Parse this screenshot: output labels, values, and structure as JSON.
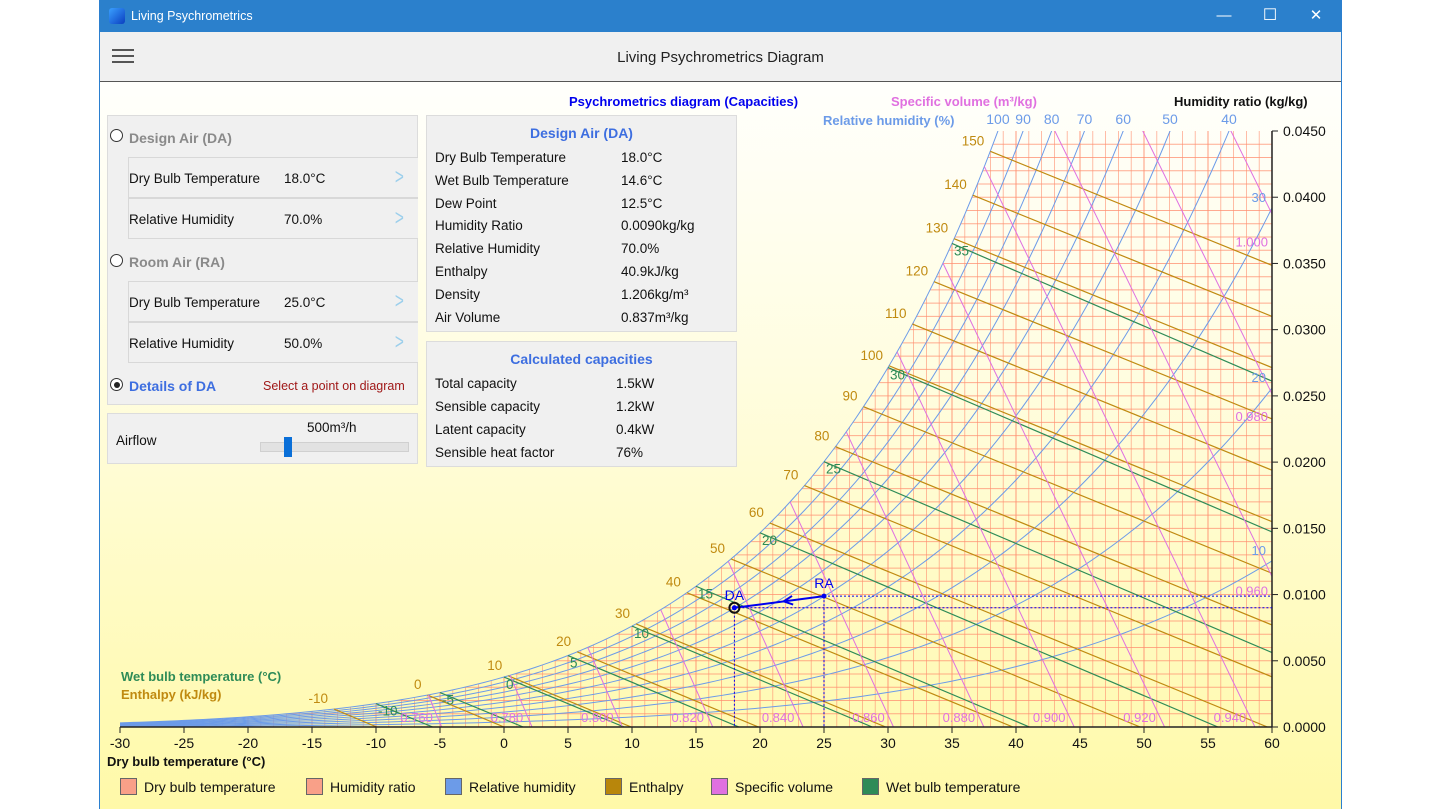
{
  "window": {
    "title": "Living Psychrometrics",
    "header_title": "Living Psychrometrics Diagram",
    "minimize": "—",
    "maximize": "☐",
    "close": "✕"
  },
  "inputs": {
    "design_air": {
      "label": "Design Air (DA)",
      "selected": false,
      "rows": [
        {
          "label": "Dry Bulb Temperature",
          "value": "18.0°C"
        },
        {
          "label": "Relative Humidity",
          "value": "70.0%"
        }
      ]
    },
    "room_air": {
      "label": "Room Air (RA)",
      "selected": false,
      "rows": [
        {
          "label": "Dry Bulb Temperature",
          "value": "25.0°C"
        },
        {
          "label": "Relative Humidity",
          "value": "50.0%"
        }
      ]
    },
    "details": {
      "label": "Details of DA",
      "selected": true,
      "hint": "Select a point on diagram"
    },
    "chevron": ">"
  },
  "airflow": {
    "label": "Airflow",
    "value": "500m³/h",
    "fraction": 0.19
  },
  "design_details": {
    "title": "Design Air (DA)",
    "rows": [
      {
        "label": "Dry Bulb Temperature",
        "value": "18.0°C"
      },
      {
        "label": "Wet Bulb Temperature",
        "value": "14.6°C"
      },
      {
        "label": "Dew Point",
        "value": "12.5°C"
      },
      {
        "label": "Humidity Ratio",
        "value": "0.0090kg/kg"
      },
      {
        "label": "Relative Humidity",
        "value": "70.0%"
      },
      {
        "label": "Enthalpy",
        "value": "40.9kJ/kg"
      },
      {
        "label": "Density",
        "value": "1.206kg/m³"
      },
      {
        "label": "Air Volume",
        "value": "0.837m³/kg"
      }
    ]
  },
  "capacities": {
    "title": "Calculated capacities",
    "rows": [
      {
        "label": "Total capacity",
        "value": "1.5kW"
      },
      {
        "label": "Sensible capacity",
        "value": "1.2kW"
      },
      {
        "label": "Latent capacity",
        "value": "0.4kW"
      },
      {
        "label": "Sensible heat factor",
        "value": "76%"
      }
    ]
  },
  "chart_data": {
    "type": "line",
    "title": "Psychrometrics diagram (Capacities)",
    "xlabel": "Dry bulb temperature (°C)",
    "ylabel": "Humidity ratio (kg/kg)",
    "specific_volume_label": "Specific volume (m³/kg)",
    "rh_label": "Relative humidity (%)",
    "wet_bulb_label": "Wet bulb temperature (°C)",
    "enthalpy_label": "Enthalpy (kJ/kg)",
    "xlim": [
      -30,
      60
    ],
    "ylim": [
      0,
      0.045
    ],
    "x_ticks": [
      "-30",
      "-25",
      "-20",
      "-15",
      "-10",
      "-5",
      "0",
      "5",
      "10",
      "15",
      "20",
      "25",
      "30",
      "35",
      "40",
      "45",
      "50",
      "55",
      "60"
    ],
    "y_ticks": [
      "0.0000",
      "0.0050",
      "0.0100",
      "0.0150",
      "0.0200",
      "0.0250",
      "0.0300",
      "0.0350",
      "0.0400",
      "0.0450"
    ],
    "rh_lines": [
      10,
      20,
      30,
      40,
      50,
      60,
      70,
      80,
      90,
      100
    ],
    "enthalpy_lines": [
      -10,
      0,
      10,
      20,
      30,
      40,
      50,
      60,
      70,
      80,
      90,
      100,
      110,
      120,
      130,
      140,
      150
    ],
    "wet_bulb_lines": [
      -10,
      -5,
      0,
      5,
      10,
      15,
      20,
      25,
      30,
      35
    ],
    "specific_volume_lines": [
      "0.760",
      "0.780",
      "0.800",
      "0.820",
      "0.840",
      "0.860",
      "0.880",
      "0.900",
      "0.920",
      "0.940",
      "0.960",
      "0.980",
      "1.000"
    ],
    "points": [
      {
        "name": "DA",
        "t": 18.0,
        "w": 0.009
      },
      {
        "name": "RA",
        "t": 25.0,
        "w": 0.00988
      }
    ],
    "process": {
      "from": "RA",
      "to": "DA"
    },
    "grid": true,
    "legend": [
      {
        "label": "Dry bulb temperature",
        "color": "#f9a088"
      },
      {
        "label": "Humidity ratio",
        "color": "#f9a088"
      },
      {
        "label": "Relative humidity",
        "color": "#6c9be8"
      },
      {
        "label": "Enthalpy",
        "color": "#b8860b"
      },
      {
        "label": "Specific volume",
        "color": "#e070e0"
      },
      {
        "label": "Wet bulb temperature",
        "color": "#2e8b57"
      }
    ],
    "colors": {
      "grid": "#ff8f70",
      "rh": "#6c9be8",
      "enthalpy": "#c08a10",
      "wet_bulb": "#2e8b57",
      "specific_volume": "#e070e0",
      "point": "#0000ee",
      "title": "#0000ee"
    }
  }
}
